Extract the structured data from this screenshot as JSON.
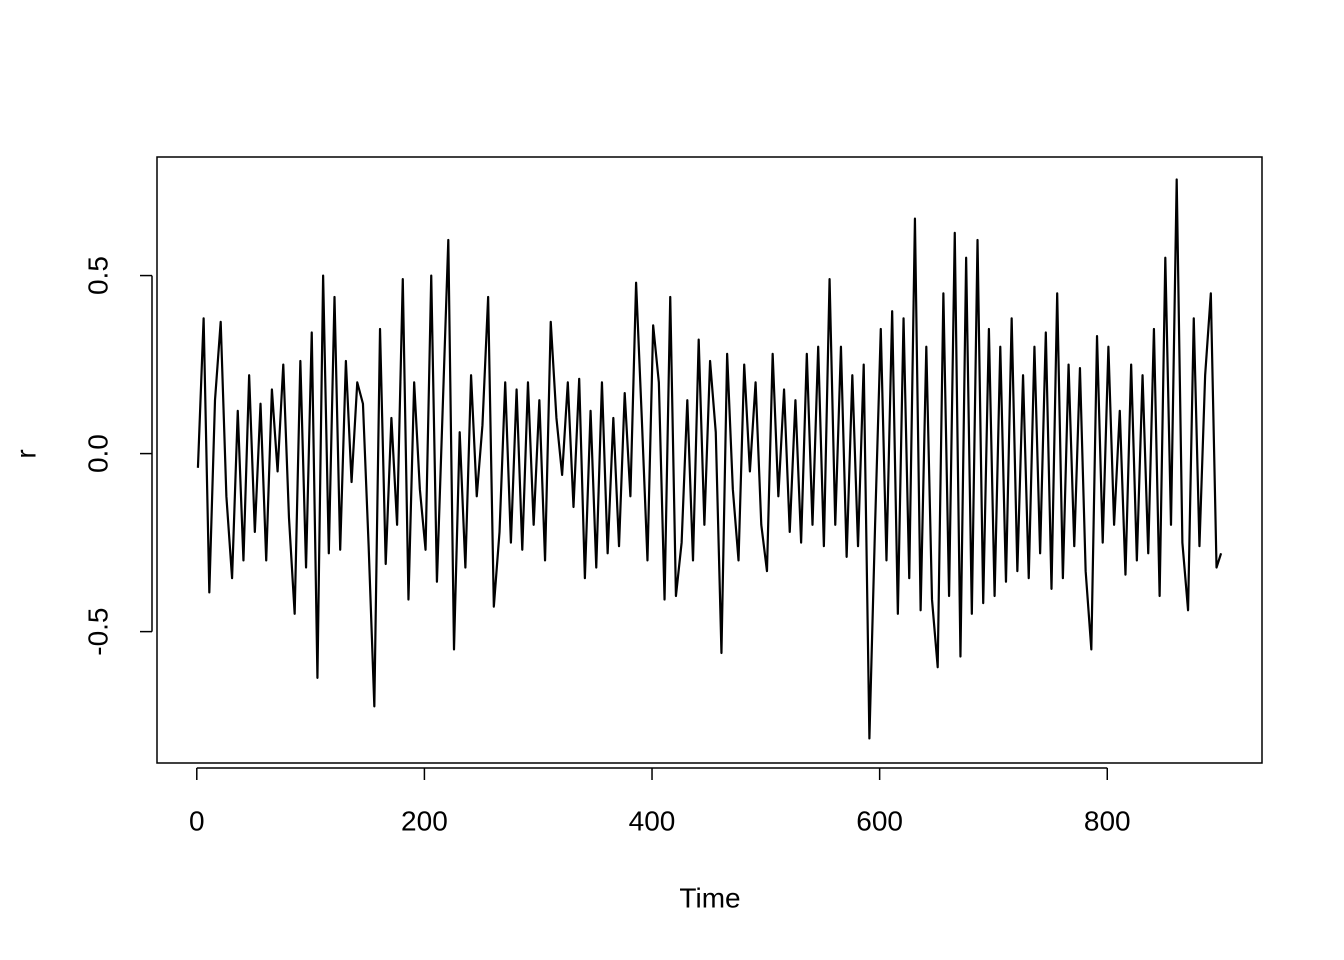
{
  "chart_data": {
    "type": "line",
    "x_label": "Time",
    "y_label": "r",
    "xlim": [
      -34.96,
      935.96
    ],
    "ylim": [
      -0.869,
      0.833
    ],
    "xticks": [
      0,
      200,
      400,
      600,
      800
    ],
    "yticks": [
      -0.5,
      {
        "value": 0,
        "label": "0.0"
      },
      0.5
    ],
    "color": "#000000",
    "x": [
      1,
      6,
      11,
      16,
      21,
      26,
      31,
      36,
      41,
      46,
      51,
      56,
      61,
      66,
      71,
      76,
      81,
      86,
      91,
      96,
      101,
      106,
      111,
      116,
      121,
      126,
      131,
      136,
      141,
      146,
      151,
      156,
      161,
      166,
      171,
      176,
      181,
      186,
      191,
      196,
      201,
      206,
      211,
      216,
      221,
      226,
      231,
      236,
      241,
      246,
      251,
      256,
      261,
      266,
      271,
      276,
      281,
      286,
      291,
      296,
      301,
      306,
      311,
      316,
      321,
      326,
      331,
      336,
      341,
      346,
      351,
      356,
      361,
      366,
      371,
      376,
      381,
      386,
      391,
      396,
      401,
      406,
      411,
      416,
      421,
      426,
      431,
      436,
      441,
      446,
      451,
      456,
      461,
      466,
      471,
      476,
      481,
      486,
      491,
      496,
      501,
      506,
      511,
      516,
      521,
      526,
      531,
      536,
      541,
      546,
      551,
      556,
      561,
      566,
      571,
      576,
      581,
      586,
      591,
      596,
      601,
      606,
      611,
      616,
      621,
      626,
      631,
      636,
      641,
      646,
      651,
      656,
      661,
      666,
      671,
      676,
      681,
      686,
      691,
      696,
      701,
      706,
      711,
      716,
      721,
      726,
      731,
      736,
      741,
      746,
      751,
      756,
      761,
      766,
      771,
      776,
      781,
      786,
      791,
      796,
      801,
      806,
      811,
      816,
      821,
      826,
      831,
      836,
      841,
      846,
      851,
      856,
      861,
      866,
      871,
      876,
      881,
      886,
      891,
      896,
      900
    ],
    "values": [
      -0.04,
      0.38,
      -0.39,
      0.15,
      0.37,
      -0.12,
      -0.35,
      0.12,
      -0.3,
      0.22,
      -0.22,
      0.14,
      -0.3,
      0.18,
      -0.05,
      0.25,
      -0.18,
      -0.45,
      0.26,
      -0.32,
      0.34,
      -0.63,
      0.5,
      -0.28,
      0.44,
      -0.27,
      0.26,
      -0.08,
      0.2,
      0.14,
      -0.26,
      -0.71,
      0.35,
      -0.31,
      0.1,
      -0.2,
      0.49,
      -0.41,
      0.2,
      -0.1,
      -0.27,
      0.5,
      -0.36,
      0.12,
      0.6,
      -0.55,
      0.06,
      -0.32,
      0.22,
      -0.12,
      0.08,
      0.44,
      -0.43,
      -0.22,
      0.2,
      -0.25,
      0.18,
      -0.27,
      0.2,
      -0.2,
      0.15,
      -0.3,
      0.37,
      0.1,
      -0.06,
      0.2,
      -0.15,
      0.21,
      -0.35,
      0.12,
      -0.32,
      0.2,
      -0.28,
      0.1,
      -0.26,
      0.17,
      -0.12,
      0.48,
      0.1,
      -0.3,
      0.36,
      0.2,
      -0.41,
      0.44,
      -0.4,
      -0.25,
      0.15,
      -0.3,
      0.32,
      -0.2,
      0.26,
      0.06,
      -0.56,
      0.28,
      -0.1,
      -0.3,
      0.25,
      -0.05,
      0.2,
      -0.2,
      -0.33,
      0.28,
      -0.12,
      0.18,
      -0.22,
      0.15,
      -0.25,
      0.28,
      -0.2,
      0.3,
      -0.26,
      0.49,
      -0.2,
      0.3,
      -0.29,
      0.22,
      -0.26,
      0.25,
      -0.8,
      -0.2,
      0.35,
      -0.3,
      0.4,
      -0.45,
      0.38,
      -0.35,
      0.66,
      -0.44,
      0.3,
      -0.41,
      -0.6,
      0.45,
      -0.4,
      0.62,
      -0.57,
      0.55,
      -0.45,
      0.6,
      -0.42,
      0.35,
      -0.4,
      0.3,
      -0.36,
      0.38,
      -0.33,
      0.22,
      -0.35,
      0.3,
      -0.28,
      0.34,
      -0.38,
      0.45,
      -0.35,
      0.25,
      -0.26,
      0.24,
      -0.33,
      -0.55,
      0.33,
      -0.25,
      0.3,
      -0.2,
      0.12,
      -0.34,
      0.25,
      -0.3,
      0.22,
      -0.28,
      0.35,
      -0.4,
      0.55,
      -0.2,
      0.77,
      -0.25,
      -0.44,
      0.38,
      -0.26,
      0.22,
      0.45,
      -0.32,
      -0.28
    ]
  }
}
